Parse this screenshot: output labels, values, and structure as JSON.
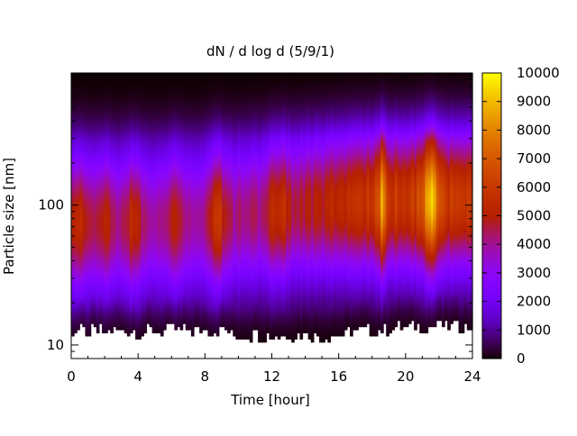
{
  "chart_data": {
    "type": "heatmap",
    "title": "dN / d log d (5/9/1)",
    "xlabel": "Time [hour]",
    "ylabel": "Particle size [nm]",
    "xlim": [
      0,
      24
    ],
    "ylim": [
      8,
      880
    ],
    "y_scale": "log",
    "grid": false,
    "x_ticks": [
      0,
      4,
      8,
      12,
      16,
      20,
      24
    ],
    "x_tick_labels": [
      "0",
      "4",
      "8",
      "12",
      "16",
      "20",
      "24"
    ],
    "y_ticks": [
      10,
      100
    ],
    "y_tick_labels": [
      "10",
      "100"
    ],
    "colorbar": {
      "min": 0,
      "max": 10000,
      "ticks": [
        0,
        1000,
        2000,
        3000,
        4000,
        5000,
        6000,
        7000,
        8000,
        9000,
        10000
      ],
      "tick_labels": [
        "0",
        "1000",
        "2000",
        "3000",
        "4000",
        "5000",
        "6000",
        "7000",
        "8000",
        "9000",
        "10000"
      ],
      "colormap": "gnuplot-pm3d (black-purple-red-orange-yellow)"
    },
    "data_range_y_nm": [
      13,
      880
    ],
    "peak_size_nm": {
      "morning": 75,
      "evening": 110
    },
    "peak_concentration": 10000,
    "peak_time_hour": 21.5
  }
}
